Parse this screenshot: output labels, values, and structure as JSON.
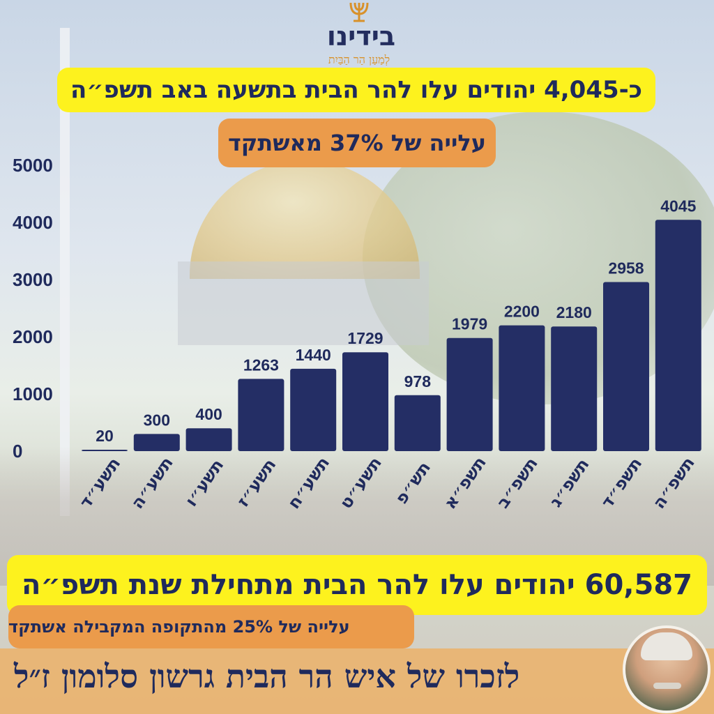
{
  "logo": {
    "name": "בידינו",
    "tagline": "לְמַעַן הַר הַבַּיִת",
    "icon": "menorah-icon"
  },
  "headline": "כ-4,045 יהודים עלו להר הבית בתשעה באב תשפ״ה",
  "subheadline": "עלייה של 37% מאשתקד",
  "total_headline": "60,587 יהודים עלו להר הבית מתחילת שנת תשפ״ה",
  "growth_note": "עלייה של 25% מהתקופה המקבילה אשתקד",
  "memorial": "לזכרו של איש הר הבית גרשון סלומון ז״ל",
  "colors": {
    "bar": "#242e65",
    "text": "#1f2a5c",
    "highlight_yellow": "#fdf21e",
    "highlight_orange": "#eb9b4b"
  },
  "chart_data": {
    "type": "bar",
    "categories": [
      "תשע״ד",
      "תשע״ה",
      "תשע״ו",
      "תשע״ז",
      "תשע״ח",
      "תשע״ט",
      "תש״פ",
      "תשפ״א",
      "תשפ״ב",
      "תשפ״ג",
      "תשפ״ד",
      "תשפ״ה"
    ],
    "values": [
      20,
      300,
      400,
      1263,
      1440,
      1729,
      978,
      1979,
      2200,
      2180,
      2958,
      4045
    ],
    "value_labels": [
      "20",
      "300",
      "400",
      "1263",
      "1440",
      "1729",
      "978",
      "1979",
      "2200",
      "2180",
      "2958",
      "4045"
    ],
    "yticks": [
      "0",
      "1000",
      "2000",
      "3000",
      "4000",
      "5000"
    ],
    "ylim": [
      0,
      5000
    ],
    "grid": false,
    "title": "",
    "xlabel": "",
    "ylabel": ""
  }
}
